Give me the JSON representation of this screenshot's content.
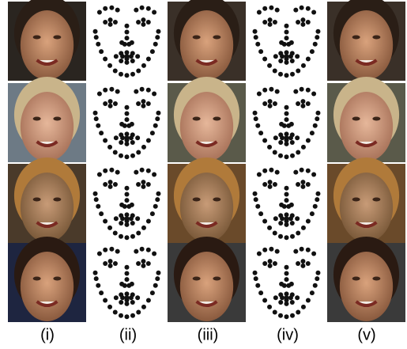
{
  "figure": {
    "column_labels": [
      "(i)",
      "(ii)",
      "(iii)",
      "(iv)",
      "(v)"
    ]
  }
}
